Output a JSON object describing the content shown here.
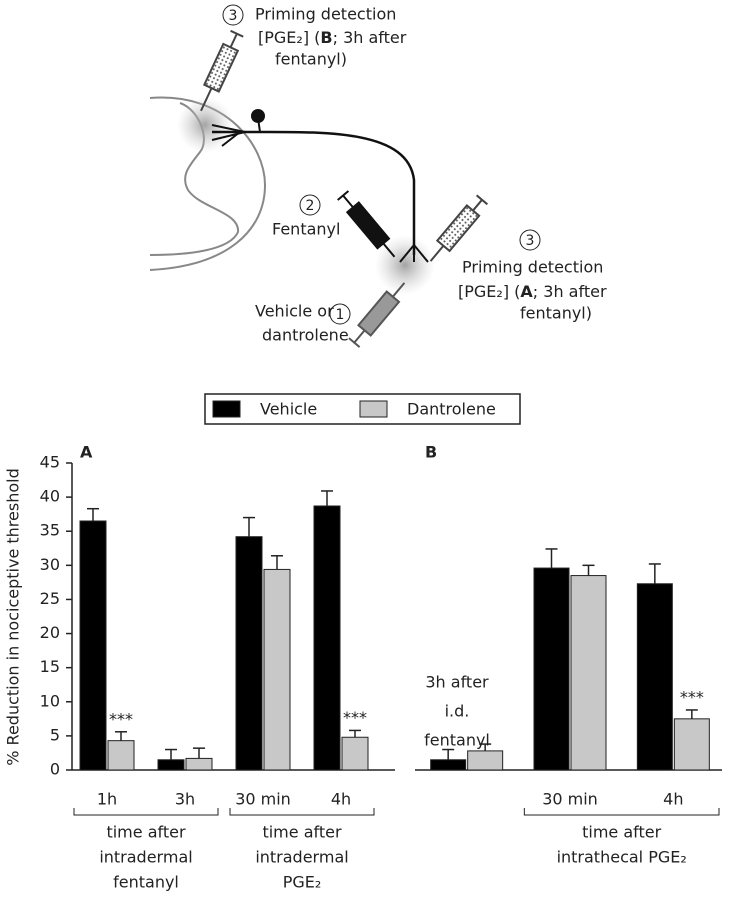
{
  "diagram": {
    "top_label": {
      "number": "3",
      "line1": "Priming detection",
      "line2": [
        "[PGE₂] (",
        "B",
        "; 3h after"
      ],
      "line3": "fentanyl)"
    },
    "fentanyl_label": {
      "number": "2",
      "line1": "Fentanyl"
    },
    "right_label": {
      "number": "3",
      "line1": "Priming detection",
      "line2": [
        "[PGE₂] (",
        "A",
        "; 3h after"
      ],
      "line3": "fentanyl)"
    },
    "vehicle_label": {
      "number": "1",
      "line1": "Vehicle or",
      "line2": "dantrolene"
    }
  },
  "chart_data": [
    {
      "type": "bar",
      "panel": "A",
      "ylabel": "% Reduction in nociceptive threshold",
      "categories": [
        "1h",
        "3h",
        "30 min",
        "4h"
      ],
      "series": [
        {
          "name": "Vehicle",
          "color": "#000000",
          "values": [
            36.5,
            1.5,
            34.2,
            38.7
          ],
          "errors": [
            1.8,
            1.5,
            2.8,
            2.2
          ]
        },
        {
          "name": "Dantrolene",
          "color": "#c8c8c8",
          "values": [
            4.3,
            1.7,
            29.4,
            4.8
          ],
          "errors": [
            1.3,
            1.5,
            2.0,
            1.0
          ],
          "markers": [
            "***",
            null,
            null,
            "***"
          ]
        }
      ],
      "groups": [
        [
          "time after",
          "intradermal",
          "fentanyl"
        ],
        [
          "time after",
          "intradermal",
          "PGE₂"
        ]
      ],
      "ylim": [
        0,
        45
      ],
      "yticks": [
        0,
        5,
        10,
        15,
        20,
        25,
        30,
        35,
        40,
        45
      ]
    },
    {
      "type": "bar",
      "panel": "B",
      "categories": [
        null,
        "30 min",
        "4h"
      ],
      "series": [
        {
          "color": "#000000",
          "values": [
            1.5,
            29.6,
            27.3
          ],
          "errors": [
            1.5,
            2.8,
            2.9
          ]
        },
        {
          "color": "#c8c8c8",
          "values": [
            2.8,
            28.5,
            7.5
          ],
          "errors": [
            1.0,
            1.5,
            1.3
          ],
          "markers": [
            null,
            null,
            "***"
          ]
        }
      ],
      "groups": [
        [
          "time after",
          "intrathecal PGE₂"
        ]
      ],
      "annotation": [
        "3h after",
        "i.d.",
        "fentanyl"
      ]
    }
  ]
}
